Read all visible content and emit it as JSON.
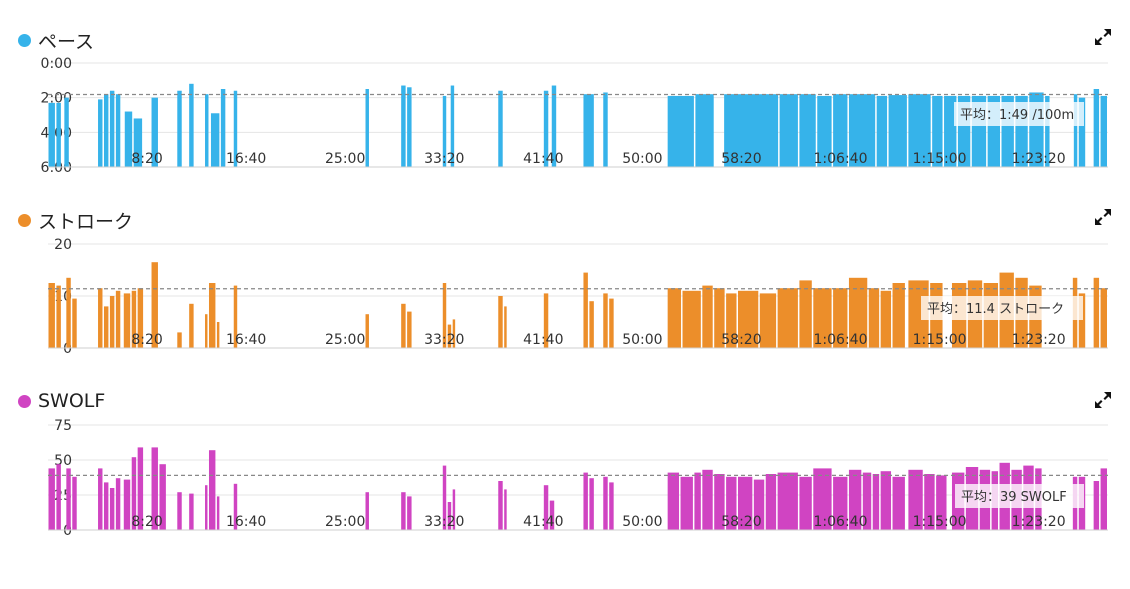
{
  "charts": [
    {
      "id": "pace",
      "title": "ペース",
      "color": "#36b3ea",
      "avg_label": "平均：1:49 /100m",
      "expand_icon": "expand-icon"
    },
    {
      "id": "stroke",
      "title": "ストローク",
      "color": "#ec8e2a",
      "avg_label": "平均：11.4 ストローク",
      "expand_icon": "expand-icon"
    },
    {
      "id": "swolf",
      "title": "SWOLF",
      "color": "#d044c2",
      "avg_label": "平均：39 SWOLF",
      "expand_icon": "expand-icon"
    }
  ],
  "chart_data": [
    {
      "type": "bar",
      "title": "ペース",
      "y_tick_labels": [
        "0:00",
        "2:00",
        "4:00",
        "6:00"
      ],
      "y_unit": "min per 100m",
      "ylim": [
        0,
        6
      ],
      "y_inverted": true,
      "average": 1.817,
      "x_tick_labels": [
        "8:20",
        "16:40",
        "25:00",
        "33:20",
        "41:40",
        "50:00",
        "58:20",
        "1:06:40",
        "1:15:00",
        "1:23:20"
      ],
      "x_ticks_seconds": [
        500,
        1000,
        1500,
        2000,
        2500,
        3000,
        3500,
        4000,
        4500,
        5000
      ],
      "xlim_seconds": [
        0,
        5350
      ],
      "bars": [
        [
          0,
          40,
          2.3
        ],
        [
          40,
          70,
          2.3
        ],
        [
          80,
          110,
          2.0
        ],
        [
          250,
          280,
          2.1
        ],
        [
          280,
          310,
          1.8
        ],
        [
          310,
          340,
          1.6
        ],
        [
          340,
          370,
          1.8
        ],
        [
          385,
          430,
          2.8
        ],
        [
          430,
          480,
          3.2
        ],
        [
          520,
          560,
          2.0
        ],
        [
          650,
          680,
          1.6
        ],
        [
          710,
          740,
          1.2
        ],
        [
          790,
          815,
          1.8
        ],
        [
          820,
          870,
          2.9
        ],
        [
          870,
          900,
          1.5
        ],
        [
          935,
          960,
          1.6
        ],
        [
          1600,
          1625,
          1.5
        ],
        [
          1780,
          1810,
          1.3
        ],
        [
          1810,
          1840,
          1.4
        ],
        [
          1990,
          2015,
          1.9
        ],
        [
          2030,
          2055,
          1.3
        ],
        [
          2270,
          2300,
          1.6
        ],
        [
          2500,
          2530,
          1.6
        ],
        [
          2540,
          2570,
          1.3
        ],
        [
          2700,
          2760,
          1.8
        ],
        [
          2800,
          2830,
          1.7
        ],
        [
          3125,
          3265,
          1.9
        ],
        [
          3265,
          3365,
          1.8
        ],
        [
          3410,
          3690,
          1.8
        ],
        [
          3690,
          3790,
          1.8
        ],
        [
          3790,
          3880,
          1.8
        ],
        [
          3880,
          3960,
          1.9
        ],
        [
          3960,
          4040,
          1.8
        ],
        [
          4040,
          4180,
          1.8
        ],
        [
          4180,
          4240,
          1.9
        ],
        [
          4240,
          4340,
          1.85
        ],
        [
          4340,
          4460,
          1.8
        ],
        [
          4460,
          4520,
          1.9
        ],
        [
          4520,
          4590,
          1.9
        ],
        [
          4590,
          4660,
          1.9
        ],
        [
          4660,
          4740,
          1.9
        ],
        [
          4740,
          4810,
          1.9
        ],
        [
          4810,
          4880,
          1.9
        ],
        [
          4880,
          4950,
          1.9
        ],
        [
          4950,
          5030,
          1.7
        ],
        [
          5030,
          5060,
          1.9
        ],
        [
          5175,
          5200,
          1.8
        ],
        [
          5200,
          5240,
          2.0
        ],
        [
          5275,
          5310,
          1.5
        ],
        [
          5310,
          5350,
          1.9
        ]
      ]
    },
    {
      "type": "bar",
      "title": "ストローク",
      "y_tick_labels": [
        "20",
        "10",
        "0"
      ],
      "ylim": [
        0,
        20
      ],
      "average": 11.4,
      "x_tick_labels": [
        "8:20",
        "16:40",
        "25:00",
        "33:20",
        "41:40",
        "50:00",
        "58:20",
        "1:06:40",
        "1:15:00",
        "1:23:20"
      ],
      "x_ticks_seconds": [
        500,
        1000,
        1500,
        2000,
        2500,
        3000,
        3500,
        4000,
        4500,
        5000
      ],
      "xlim_seconds": [
        0,
        5350
      ],
      "bars": [
        [
          0,
          40,
          12.5
        ],
        [
          40,
          70,
          12.0
        ],
        [
          90,
          120,
          13.5
        ],
        [
          120,
          150,
          9.5
        ],
        [
          250,
          280,
          11.5
        ],
        [
          280,
          310,
          8.0
        ],
        [
          310,
          340,
          10.0
        ],
        [
          340,
          370,
          11.0
        ],
        [
          380,
          420,
          10.5
        ],
        [
          420,
          450,
          11.0
        ],
        [
          450,
          485,
          11.5
        ],
        [
          520,
          560,
          16.5
        ],
        [
          650,
          680,
          3.0
        ],
        [
          710,
          740,
          8.5
        ],
        [
          790,
          810,
          6.5
        ],
        [
          810,
          850,
          12.5
        ],
        [
          850,
          870,
          5.0
        ],
        [
          935,
          960,
          12.0
        ],
        [
          1600,
          1625,
          6.5
        ],
        [
          1780,
          1810,
          8.5
        ],
        [
          1810,
          1840,
          7.0
        ],
        [
          1990,
          2015,
          12.5
        ],
        [
          2015,
          2040,
          4.5
        ],
        [
          2040,
          2060,
          5.5
        ],
        [
          2270,
          2300,
          10.0
        ],
        [
          2300,
          2320,
          8.0
        ],
        [
          2500,
          2530,
          10.5
        ],
        [
          2700,
          2730,
          14.5
        ],
        [
          2730,
          2760,
          9.0
        ],
        [
          2800,
          2830,
          10.5
        ],
        [
          2830,
          2860,
          9.5
        ],
        [
          3125,
          3200,
          11.5
        ],
        [
          3200,
          3300,
          11.0
        ],
        [
          3300,
          3360,
          12.0
        ],
        [
          3360,
          3420,
          11.5
        ],
        [
          3420,
          3480,
          10.5
        ],
        [
          3480,
          3590,
          11.0
        ],
        [
          3590,
          3680,
          10.5
        ],
        [
          3680,
          3790,
          11.5
        ],
        [
          3790,
          3860,
          13.0
        ],
        [
          3860,
          3960,
          11.5
        ],
        [
          3960,
          4040,
          11.5
        ],
        [
          4040,
          4140,
          13.5
        ],
        [
          4140,
          4200,
          11.5
        ],
        [
          4200,
          4260,
          11.0
        ],
        [
          4260,
          4330,
          12.5
        ],
        [
          4340,
          4450,
          13.0
        ],
        [
          4450,
          4520,
          12.5
        ],
        [
          4560,
          4640,
          12.5
        ],
        [
          4640,
          4720,
          13.0
        ],
        [
          4720,
          4800,
          12.5
        ],
        [
          4800,
          4880,
          14.5
        ],
        [
          4880,
          4950,
          13.5
        ],
        [
          4950,
          5020,
          12.0
        ],
        [
          5170,
          5200,
          13.5
        ],
        [
          5200,
          5240,
          10.5
        ],
        [
          5275,
          5310,
          13.5
        ],
        [
          5310,
          5350,
          11.5
        ]
      ]
    },
    {
      "type": "bar",
      "title": "SWOLF",
      "y_tick_labels": [
        "75",
        "50",
        "25",
        "0"
      ],
      "ylim": [
        0,
        75
      ],
      "average": 39,
      "x_tick_labels": [
        "8:20",
        "16:40",
        "25:00",
        "33:20",
        "41:40",
        "50:00",
        "58:20",
        "1:06:40",
        "1:15:00",
        "1:23:20"
      ],
      "x_ticks_seconds": [
        500,
        1000,
        1500,
        2000,
        2500,
        3000,
        3500,
        4000,
        4500,
        5000
      ],
      "xlim_seconds": [
        0,
        5350
      ],
      "bars": [
        [
          0,
          40,
          44
        ],
        [
          40,
          70,
          47
        ],
        [
          90,
          120,
          44
        ],
        [
          120,
          150,
          38
        ],
        [
          250,
          280,
          44
        ],
        [
          280,
          310,
          34
        ],
        [
          310,
          340,
          30
        ],
        [
          340,
          370,
          37
        ],
        [
          380,
          420,
          36
        ],
        [
          420,
          450,
          52
        ],
        [
          450,
          485,
          59
        ],
        [
          520,
          560,
          59
        ],
        [
          560,
          600,
          47
        ],
        [
          650,
          680,
          27
        ],
        [
          710,
          740,
          26
        ],
        [
          790,
          810,
          32
        ],
        [
          810,
          850,
          57
        ],
        [
          850,
          870,
          24
        ],
        [
          935,
          960,
          33
        ],
        [
          1600,
          1625,
          27
        ],
        [
          1780,
          1810,
          27
        ],
        [
          1810,
          1840,
          24
        ],
        [
          1990,
          2015,
          46
        ],
        [
          2015,
          2040,
          20
        ],
        [
          2040,
          2060,
          29
        ],
        [
          2270,
          2300,
          35
        ],
        [
          2300,
          2320,
          29
        ],
        [
          2500,
          2530,
          32
        ],
        [
          2530,
          2560,
          21
        ],
        [
          2700,
          2730,
          41
        ],
        [
          2730,
          2760,
          37
        ],
        [
          2800,
          2830,
          38
        ],
        [
          2830,
          2860,
          34
        ],
        [
          3125,
          3190,
          41
        ],
        [
          3190,
          3260,
          38
        ],
        [
          3260,
          3300,
          41
        ],
        [
          3300,
          3360,
          43
        ],
        [
          3360,
          3420,
          40
        ],
        [
          3420,
          3480,
          38
        ],
        [
          3480,
          3560,
          38
        ],
        [
          3560,
          3620,
          36
        ],
        [
          3620,
          3680,
          40
        ],
        [
          3680,
          3790,
          41
        ],
        [
          3790,
          3860,
          38
        ],
        [
          3860,
          3960,
          44
        ],
        [
          3960,
          4040,
          38
        ],
        [
          4040,
          4110,
          43
        ],
        [
          4110,
          4160,
          41
        ],
        [
          4160,
          4200,
          40
        ],
        [
          4200,
          4260,
          42
        ],
        [
          4260,
          4330,
          38
        ],
        [
          4340,
          4420,
          43
        ],
        [
          4420,
          4480,
          40
        ],
        [
          4480,
          4540,
          39
        ],
        [
          4560,
          4630,
          41
        ],
        [
          4630,
          4700,
          45
        ],
        [
          4700,
          4760,
          43
        ],
        [
          4760,
          4800,
          42
        ],
        [
          4800,
          4860,
          48
        ],
        [
          4860,
          4920,
          43
        ],
        [
          4920,
          4980,
          46
        ],
        [
          4980,
          5020,
          44
        ],
        [
          5170,
          5200,
          38
        ],
        [
          5200,
          5240,
          38
        ],
        [
          5275,
          5310,
          35
        ],
        [
          5310,
          5350,
          44
        ]
      ]
    }
  ]
}
